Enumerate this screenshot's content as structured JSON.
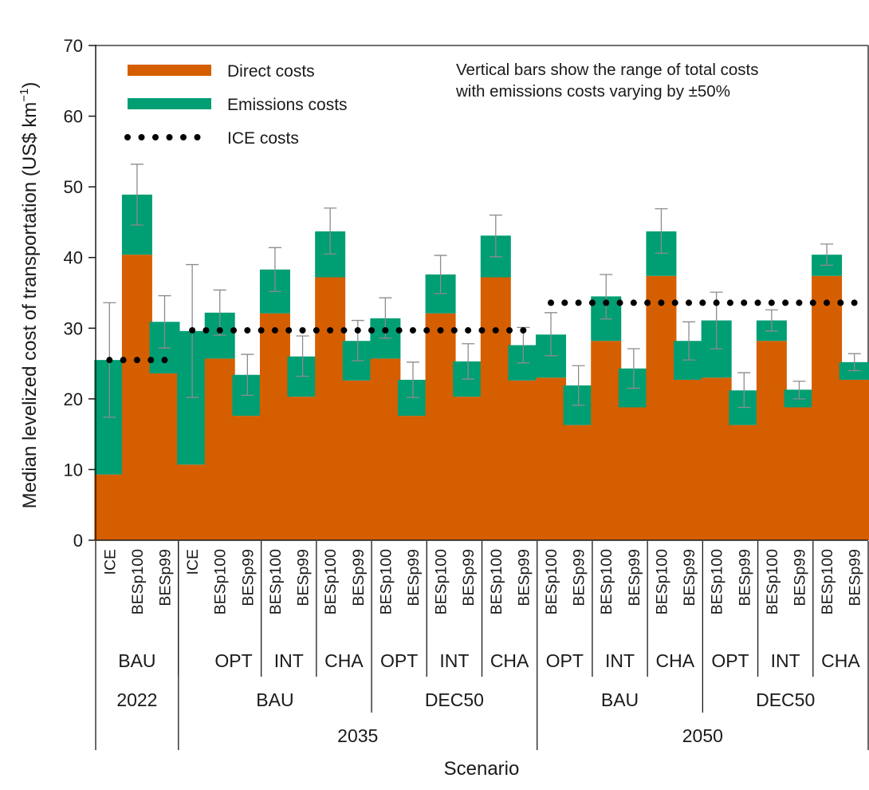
{
  "chart_data": {
    "type": "bar",
    "stacked": true,
    "ylabel": "Median levelized cost of transportation (US$ km",
    "ylabel_sup": "−1",
    "ylabel_close": ")",
    "xlabel": "Scenario",
    "ylim": [
      0,
      70
    ],
    "yticks": [
      0,
      10,
      20,
      30,
      40,
      50,
      60,
      70
    ],
    "grid": false,
    "legend": {
      "placement": "top-left",
      "direct": "Direct costs",
      "emissions": "Emissions costs",
      "ice": "ICE costs"
    },
    "annotation_lines": [
      "Vertical bars show the range of total costs",
      "with emissions costs varying by ±50%"
    ],
    "colors": {
      "direct": "#d55e00",
      "emissions": "#009e73",
      "ice": "#000000",
      "error": "#8c8c8c"
    },
    "bars": [
      {
        "label": "ICE",
        "direct": 9.3,
        "emissions": 16.2,
        "err_low": 17.4,
        "err_high": 33.6
      },
      {
        "label": "BESp100",
        "direct": 40.4,
        "emissions": 8.5,
        "err_low": 44.6,
        "err_high": 53.2
      },
      {
        "label": "BESp99",
        "direct": 23.6,
        "emissions": 7.3,
        "err_low": 27.2,
        "err_high": 34.6
      },
      {
        "label": "ICE",
        "direct": 10.7,
        "emissions": 18.9,
        "err_low": 20.2,
        "err_high": 39.0
      },
      {
        "label": "BESp100",
        "direct": 25.7,
        "emissions": 6.5,
        "err_low": 29.0,
        "err_high": 35.4
      },
      {
        "label": "BESp99",
        "direct": 17.6,
        "emissions": 5.8,
        "err_low": 20.5,
        "err_high": 26.3
      },
      {
        "label": "BESp100",
        "direct": 32.1,
        "emissions": 6.2,
        "err_low": 35.2,
        "err_high": 41.4
      },
      {
        "label": "BESp99",
        "direct": 20.3,
        "emissions": 5.7,
        "err_low": 23.2,
        "err_high": 28.9
      },
      {
        "label": "BESp100",
        "direct": 37.2,
        "emissions": 6.5,
        "err_low": 40.5,
        "err_high": 47.0
      },
      {
        "label": "BESp99",
        "direct": 22.6,
        "emissions": 5.6,
        "err_low": 25.4,
        "err_high": 31.1
      },
      {
        "label": "BESp100",
        "direct": 25.7,
        "emissions": 5.7,
        "err_low": 28.6,
        "err_high": 34.3
      },
      {
        "label": "BESp99",
        "direct": 17.6,
        "emissions": 5.1,
        "err_low": 20.2,
        "err_high": 25.2
      },
      {
        "label": "BESp100",
        "direct": 32.1,
        "emissions": 5.5,
        "err_low": 34.9,
        "err_high": 40.3
      },
      {
        "label": "BESp99",
        "direct": 20.3,
        "emissions": 5.0,
        "err_low": 22.8,
        "err_high": 27.8
      },
      {
        "label": "BESp100",
        "direct": 37.2,
        "emissions": 5.9,
        "err_low": 40.1,
        "err_high": 46.0
      },
      {
        "label": "BESp99",
        "direct": 22.6,
        "emissions": 5.0,
        "err_low": 25.1,
        "err_high": 30.1
      },
      {
        "label": "BESp100",
        "direct": 23.0,
        "emissions": 6.1,
        "err_low": 26.1,
        "err_high": 32.2
      },
      {
        "label": "BESp99",
        "direct": 16.3,
        "emissions": 5.6,
        "err_low": 19.1,
        "err_high": 24.7
      },
      {
        "label": "BESp100",
        "direct": 28.2,
        "emissions": 6.3,
        "err_low": 31.3,
        "err_high": 37.6
      },
      {
        "label": "BESp99",
        "direct": 18.8,
        "emissions": 5.5,
        "err_low": 21.5,
        "err_high": 27.1
      },
      {
        "label": "BESp100",
        "direct": 37.4,
        "emissions": 6.3,
        "err_low": 40.6,
        "err_high": 46.9
      },
      {
        "label": "BESp99",
        "direct": 22.7,
        "emissions": 5.5,
        "err_low": 25.5,
        "err_high": 30.9
      },
      {
        "label": "BESp100",
        "direct": 23.0,
        "emissions": 8.1,
        "err_low": 27.1,
        "err_high": 35.1
      },
      {
        "label": "BESp99",
        "direct": 16.3,
        "emissions": 4.9,
        "err_low": 18.8,
        "err_high": 23.7
      },
      {
        "label": "BESp100",
        "direct": 28.2,
        "emissions": 2.9,
        "err_low": 29.6,
        "err_high": 32.6
      },
      {
        "label": "BESp99",
        "direct": 18.8,
        "emissions": 2.5,
        "err_low": 20.0,
        "err_high": 22.5
      },
      {
        "label": "BESp100",
        "direct": 37.4,
        "emissions": 3.0,
        "err_low": 38.9,
        "err_high": 41.9
      },
      {
        "label": "BESp99",
        "direct": 22.7,
        "emissions": 2.5,
        "err_low": 24.0,
        "err_high": 26.4
      }
    ],
    "ice_lines": [
      {
        "value": 25.5,
        "from_bar": 0,
        "to_bar": 2
      },
      {
        "value": 29.7,
        "from_bar": 3,
        "to_bar": 15
      },
      {
        "value": 33.6,
        "from_bar": 16,
        "to_bar": 27
      }
    ],
    "groups": {
      "level1": [
        {
          "label": "BAU",
          "start": 0,
          "end": 2
        },
        {
          "label": "OPT",
          "start": 4,
          "end": 5
        },
        {
          "label": "INT",
          "start": 6,
          "end": 7
        },
        {
          "label": "CHA",
          "start": 8,
          "end": 9
        },
        {
          "label": "OPT",
          "start": 10,
          "end": 11
        },
        {
          "label": "INT",
          "start": 12,
          "end": 13
        },
        {
          "label": "CHA",
          "start": 14,
          "end": 15
        },
        {
          "label": "OPT",
          "start": 16,
          "end": 17
        },
        {
          "label": "INT",
          "start": 18,
          "end": 19
        },
        {
          "label": "CHA",
          "start": 20,
          "end": 21
        },
        {
          "label": "OPT",
          "start": 22,
          "end": 23
        },
        {
          "label": "INT",
          "start": 24,
          "end": 25
        },
        {
          "label": "CHA",
          "start": 26,
          "end": 27
        }
      ],
      "level2": [
        {
          "label": "2022",
          "start": 0,
          "end": 2
        },
        {
          "label": "BAU",
          "start": 3,
          "end": 9
        },
        {
          "label": "DEC50",
          "start": 10,
          "end": 15
        },
        {
          "label": "BAU",
          "start": 16,
          "end": 21
        },
        {
          "label": "DEC50",
          "start": 22,
          "end": 27
        }
      ],
      "level3": [
        {
          "label": "2035",
          "start": 3,
          "end": 15
        },
        {
          "label": "2050",
          "start": 16,
          "end": 27
        }
      ]
    }
  }
}
